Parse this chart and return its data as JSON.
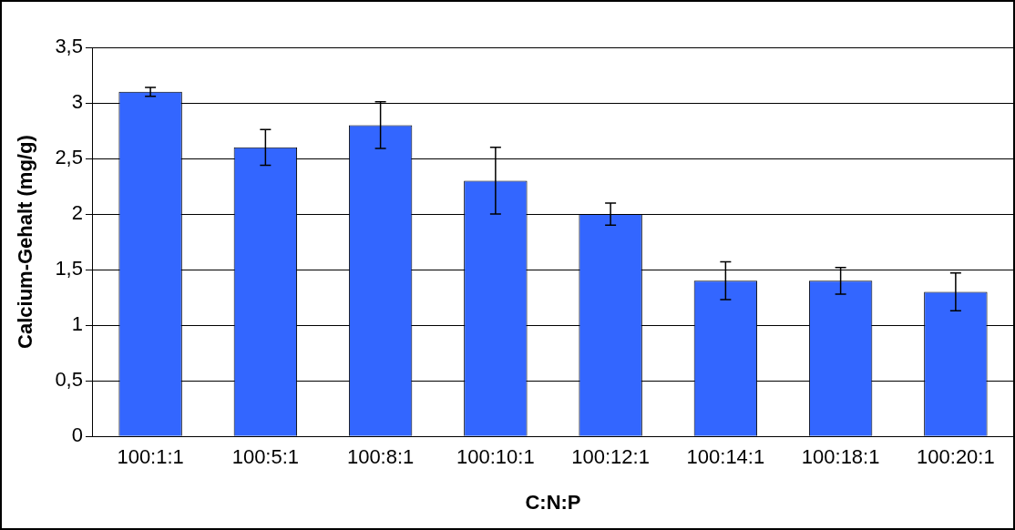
{
  "chart_data": {
    "type": "bar",
    "xlabel": "C:N:P",
    "ylabel": "Calcium-Gehalt (mg/g)",
    "categories": [
      "100:1:1",
      "100:5:1",
      "100:8:1",
      "100:10:1",
      "100:12:1",
      "100:14:1",
      "100:18:1",
      "100:20:1"
    ],
    "values": [
      3.1,
      2.6,
      2.8,
      2.3,
      2.0,
      1.4,
      1.4,
      1.3
    ],
    "errors": [
      0.04,
      0.16,
      0.21,
      0.3,
      0.1,
      0.17,
      0.12,
      0.17
    ],
    "color": "#3366ff",
    "ylim": [
      0,
      3.5
    ],
    "yticks": [
      0,
      {
        "value": 0.5,
        "label": "0,5"
      },
      1,
      {
        "value": 1.5,
        "label": "1,5"
      },
      2,
      {
        "value": 2.5,
        "label": "2,5"
      },
      3,
      {
        "value": 3.5,
        "label": "3,5"
      }
    ],
    "grid": "y",
    "legend": false
  }
}
